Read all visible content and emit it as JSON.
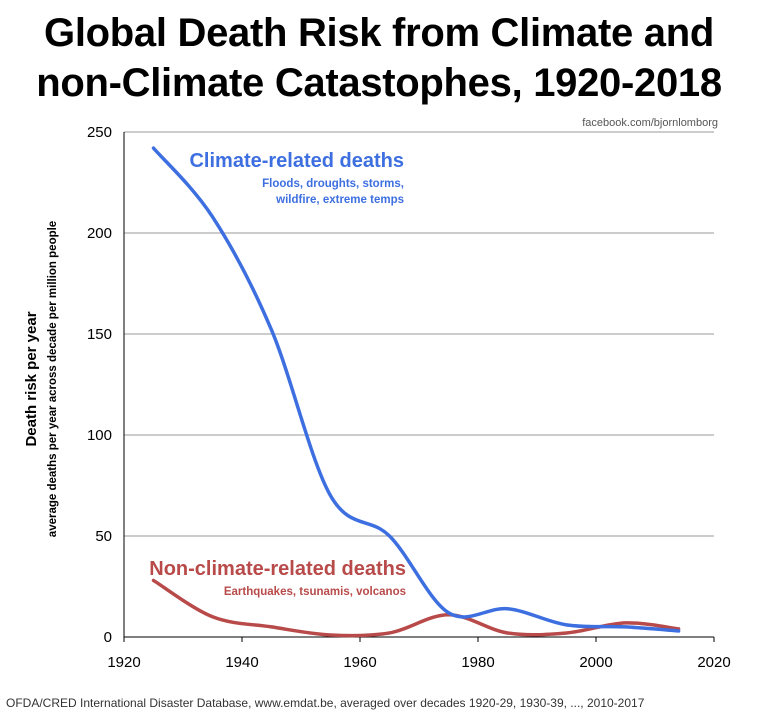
{
  "title_line1": "Global Death Risk from Climate and",
  "title_line2": "non-Climate Catastophes, 1920-2018",
  "credit": "facebook.com/bjornlomborg",
  "source": "OFDA/CRED International Disaster Database, www.emdat.be, averaged over decades 1920-29, 1930-39, ..., 2010-2017",
  "colors": {
    "climate": "#3d6fe0",
    "nonclimate": "#b84a4a",
    "grid": "#999999"
  },
  "chart_data": {
    "type": "line",
    "title": "Global Death Risk from Climate and non-Climate Catastophes, 1920-2018",
    "ylabel": "Death risk per year",
    "ylabel_sub": "average deaths per year across decade per million people",
    "xlabel": "",
    "xlim": [
      1920,
      2020
    ],
    "ylim": [
      0,
      250
    ],
    "xticks": [
      1920,
      1940,
      1960,
      1980,
      2000,
      2020
    ],
    "yticks": [
      0,
      50,
      100,
      150,
      200,
      250
    ],
    "grid": "horizontal",
    "series": [
      {
        "name": "Climate-related deaths",
        "subtitle_line1": "Floods, droughts, storms,",
        "subtitle_line2": "wildfire, extreme temps",
        "color": "#3d6fe0",
        "points": [
          [
            1925,
            242
          ],
          [
            1935,
            208
          ],
          [
            1945,
            152
          ],
          [
            1955,
            70
          ],
          [
            1965,
            50
          ],
          [
            1975,
            12
          ],
          [
            1985,
            14
          ],
          [
            1995,
            6
          ],
          [
            2005,
            5
          ],
          [
            2014,
            3
          ]
        ]
      },
      {
        "name": "Non-climate-related deaths",
        "subtitle_line1": "Earthquakes, tsunamis, volcanos",
        "color": "#b84a4a",
        "points": [
          [
            1925,
            28
          ],
          [
            1935,
            10
          ],
          [
            1945,
            5
          ],
          [
            1955,
            1
          ],
          [
            1965,
            2
          ],
          [
            1975,
            11
          ],
          [
            1985,
            2
          ],
          [
            1995,
            2
          ],
          [
            2005,
            7
          ],
          [
            2014,
            4
          ]
        ]
      }
    ]
  }
}
